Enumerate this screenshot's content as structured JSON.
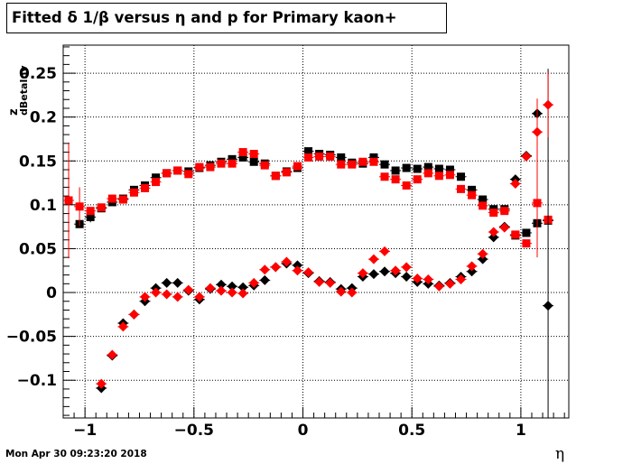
{
  "chart_data": {
    "type": "scatter",
    "title": "Fitted δ 1/β versus η and p for Primary kaon+",
    "xlabel": "η",
    "ylabel": "z",
    "ylabel_subscript": "dBetaInv",
    "xlim": [
      -1.1,
      1.22
    ],
    "ylim": [
      -0.143,
      0.282
    ],
    "x_ticks": [
      "−1",
      "−0.5",
      "0",
      "0.5",
      "1"
    ],
    "x_tick_values": [
      -1,
      -0.5,
      0,
      0.5,
      1
    ],
    "y_ticks": [
      "−0.1",
      "−0.05",
      "0",
      "0.05",
      "0.1",
      "0.15",
      "0.2",
      "0.25"
    ],
    "y_tick_values": [
      -0.1,
      -0.05,
      0,
      0.05,
      0.1,
      0.15,
      0.2,
      0.25
    ],
    "grid": true,
    "series": [
      {
        "marker": "square",
        "color": "#000000",
        "x": [
          -1.025,
          -0.975,
          -0.925,
          -0.875,
          -0.825,
          -0.775,
          -0.725,
          -0.675,
          -0.625,
          -0.575,
          -0.525,
          -0.475,
          -0.425,
          -0.375,
          -0.325,
          -0.275,
          -0.225,
          -0.175,
          -0.125,
          -0.075,
          -0.025,
          0.025,
          0.075,
          0.125,
          0.175,
          0.225,
          0.275,
          0.325,
          0.375,
          0.425,
          0.475,
          0.525,
          0.575,
          0.625,
          0.675,
          0.725,
          0.775,
          0.825,
          0.875,
          0.925,
          0.975,
          1.025,
          1.075,
          1.125
        ],
        "values": [
          0.078,
          0.086,
          0.096,
          0.103,
          0.107,
          0.117,
          0.122,
          0.131,
          0.136,
          0.139,
          0.138,
          0.142,
          0.145,
          0.149,
          0.152,
          0.154,
          0.149,
          0.147,
          0.133,
          0.138,
          0.142,
          0.161,
          0.158,
          0.157,
          0.154,
          0.148,
          0.147,
          0.154,
          0.146,
          0.139,
          0.142,
          0.141,
          0.143,
          0.141,
          0.14,
          0.132,
          0.117,
          0.106,
          0.095,
          0.095,
          0.065,
          0.068,
          0.079,
          0.082
        ],
        "errors": [
          0.0,
          0.006,
          0.0,
          0.0,
          0.0,
          0.0,
          0.0,
          0.0,
          0.0,
          0.0,
          0.0,
          0.0,
          0.0,
          0.0,
          0.0,
          0.0,
          0.0,
          0.0,
          0.0,
          0.0,
          0.0,
          0.0,
          0.0,
          0.0,
          0.0,
          0.0,
          0.0,
          0.0,
          0.0,
          0.0,
          0.0,
          0.0,
          0.0,
          0.0,
          0.0,
          0.0,
          0.0,
          0.0,
          0.0,
          0.0,
          0.0,
          0.0,
          0.0,
          0.0
        ]
      },
      {
        "marker": "square",
        "color": "#ff0000",
        "x": [
          -1.075,
          -1.025,
          -0.975,
          -0.925,
          -0.875,
          -0.825,
          -0.775,
          -0.725,
          -0.675,
          -0.625,
          -0.575,
          -0.525,
          -0.475,
          -0.425,
          -0.375,
          -0.325,
          -0.275,
          -0.225,
          -0.175,
          -0.125,
          -0.075,
          -0.025,
          0.025,
          0.075,
          0.125,
          0.175,
          0.225,
          0.275,
          0.325,
          0.375,
          0.425,
          0.475,
          0.525,
          0.575,
          0.625,
          0.675,
          0.725,
          0.775,
          0.825,
          0.875,
          0.925,
          0.975,
          1.025,
          1.075,
          1.125
        ],
        "values": [
          0.105,
          0.098,
          0.093,
          0.097,
          0.107,
          0.106,
          0.114,
          0.119,
          0.126,
          0.136,
          0.139,
          0.135,
          0.143,
          0.143,
          0.147,
          0.147,
          0.16,
          0.158,
          0.145,
          0.133,
          0.137,
          0.144,
          0.154,
          0.155,
          0.155,
          0.146,
          0.146,
          0.149,
          0.149,
          0.132,
          0.129,
          0.122,
          0.129,
          0.136,
          0.133,
          0.134,
          0.118,
          0.111,
          0.099,
          0.091,
          0.093,
          0.066,
          0.056,
          0.102,
          0.083
        ],
        "errors": [
          0.066,
          0.022,
          0.0,
          0.0,
          0.0,
          0.0,
          0.0,
          0.0,
          0.0,
          0.0,
          0.0,
          0.0,
          0.0,
          0.0,
          0.0,
          0.0,
          0.0,
          0.0,
          0.0,
          0.0,
          0.0,
          0.0,
          0.0,
          0.0,
          0.0,
          0.0,
          0.0,
          0.0,
          0.0,
          0.0,
          0.0,
          0.0,
          0.0,
          0.0,
          0.0,
          0.0,
          0.0,
          0.0,
          0.0,
          0.0,
          0.0,
          0.0,
          0.0,
          0.062,
          0.0
        ]
      },
      {
        "marker": "diamond",
        "color": "#000000",
        "x": [
          -0.925,
          -0.875,
          -0.825,
          -0.775,
          -0.725,
          -0.675,
          -0.625,
          -0.575,
          -0.525,
          -0.475,
          -0.425,
          -0.375,
          -0.325,
          -0.275,
          -0.225,
          -0.175,
          -0.125,
          -0.075,
          -0.025,
          0.025,
          0.075,
          0.125,
          0.175,
          0.225,
          0.275,
          0.325,
          0.375,
          0.425,
          0.475,
          0.525,
          0.575,
          0.625,
          0.675,
          0.725,
          0.775,
          0.825,
          0.875,
          0.925,
          0.975,
          1.025,
          1.075,
          1.125
        ],
        "values": [
          -0.109,
          -0.072,
          -0.035,
          -0.025,
          -0.01,
          0.005,
          0.011,
          0.011,
          0.002,
          -0.008,
          0.004,
          0.009,
          0.007,
          0.006,
          0.008,
          0.014,
          0.029,
          0.033,
          0.031,
          0.022,
          0.013,
          0.012,
          0.004,
          0.005,
          0.018,
          0.021,
          0.024,
          0.022,
          0.018,
          0.012,
          0.01,
          0.008,
          0.011,
          0.018,
          0.024,
          0.038,
          0.063,
          0.075,
          0.129,
          0.156,
          0.204,
          -0.015
        ],
        "errors": [
          0.0,
          0.0,
          0.0,
          0.0,
          0.0,
          0.0,
          0.0,
          0.0,
          0.0,
          0.0,
          0.0,
          0.0,
          0.0,
          0.0,
          0.0,
          0.0,
          0.0,
          0.0,
          0.0,
          0.0,
          0.0,
          0.0,
          0.0,
          0.0,
          0.0,
          0.0,
          0.0,
          0.0,
          0.0,
          0.0,
          0.0,
          0.0,
          0.0,
          0.0,
          0.0,
          0.0,
          0.0,
          0.0,
          0.0,
          0.0,
          0.0,
          0.27
        ]
      },
      {
        "marker": "diamond",
        "color": "#ff0000",
        "x": [
          -0.925,
          -0.875,
          -0.825,
          -0.775,
          -0.725,
          -0.675,
          -0.625,
          -0.575,
          -0.525,
          -0.475,
          -0.425,
          -0.375,
          -0.325,
          -0.275,
          -0.225,
          -0.175,
          -0.125,
          -0.075,
          -0.025,
          0.025,
          0.075,
          0.125,
          0.175,
          0.225,
          0.275,
          0.325,
          0.375,
          0.425,
          0.475,
          0.525,
          0.575,
          0.625,
          0.675,
          0.725,
          0.775,
          0.825,
          0.875,
          0.925,
          0.975,
          1.025,
          1.075,
          1.125
        ],
        "values": [
          -0.104,
          -0.071,
          -0.039,
          -0.025,
          -0.005,
          0.0,
          -0.002,
          -0.005,
          0.003,
          -0.005,
          0.005,
          0.002,
          0.0,
          -0.001,
          0.011,
          0.026,
          0.029,
          0.035,
          0.025,
          0.023,
          0.012,
          0.011,
          0.001,
          0.0,
          0.022,
          0.038,
          0.047,
          0.025,
          0.029,
          0.016,
          0.015,
          0.007,
          0.01,
          0.015,
          0.03,
          0.044,
          0.069,
          0.074,
          0.124,
          0.155,
          0.183,
          0.214
        ],
        "errors": [
          0.0,
          0.0,
          0.0,
          0.0,
          0.0,
          0.0,
          0.0,
          0.0,
          0.0,
          0.0,
          0.0,
          0.0,
          0.0,
          0.0,
          0.0,
          0.0,
          0.0,
          0.0,
          0.0,
          0.0,
          0.0,
          0.0,
          0.0,
          0.0,
          0.0,
          0.0,
          0.0,
          0.0,
          0.0,
          0.0,
          0.0,
          0.0,
          0.0,
          0.0,
          0.0,
          0.0,
          0.0,
          0.0,
          0.0,
          0.0,
          0.038,
          0.037
        ]
      }
    ]
  },
  "footer_text": "Mon Apr 30 09:23:20 2018"
}
